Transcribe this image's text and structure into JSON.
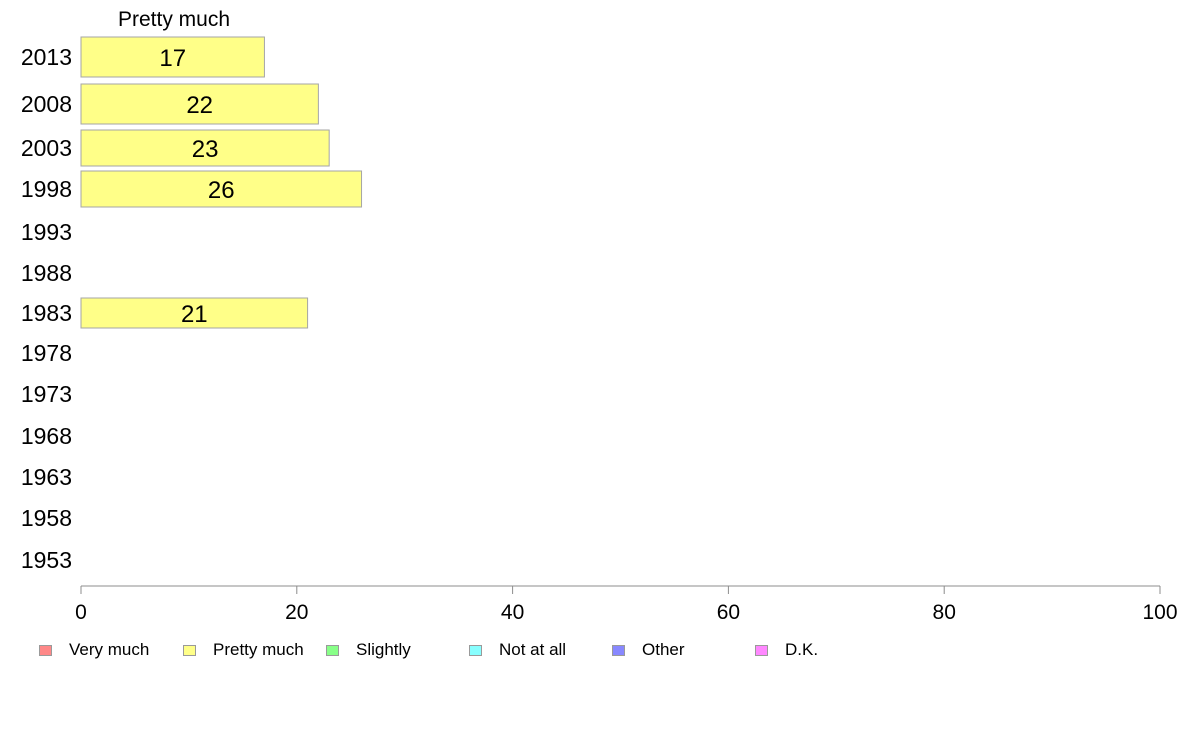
{
  "chart_data": {
    "type": "bar",
    "orientation": "horizontal",
    "panel_title": "Pretty much",
    "categories": [
      "2013",
      "2008",
      "2003",
      "1998",
      "1993",
      "1988",
      "1983",
      "1978",
      "1973",
      "1968",
      "1963",
      "1958",
      "1953"
    ],
    "series": [
      {
        "name": "Pretty much",
        "color": "#ffff88",
        "values": [
          17,
          22,
          23,
          26,
          null,
          null,
          21,
          null,
          null,
          null,
          null,
          null,
          null
        ]
      }
    ],
    "xlim": [
      0,
      100
    ],
    "x_ticks": [
      "0",
      "20",
      "40",
      "60",
      "80",
      "100"
    ],
    "grid": false,
    "legend": {
      "placement": "bottom",
      "entries": [
        {
          "label": "Very much",
          "color": "#ff8888"
        },
        {
          "label": "Pretty much",
          "color": "#ffff88"
        },
        {
          "label": "Slightly",
          "color": "#88ff88"
        },
        {
          "label": "Not at all",
          "color": "#88ffff"
        },
        {
          "label": "Other",
          "color": "#8888ff"
        },
        {
          "label": "D.K.",
          "color": "#ff88ff"
        }
      ]
    }
  }
}
